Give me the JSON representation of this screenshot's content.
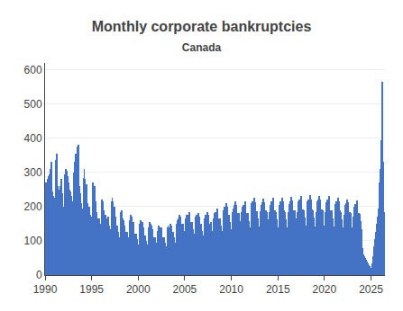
{
  "chart_data": {
    "type": "bar",
    "title": "Monthly corporate bankruptcies",
    "subtitle": "Canada",
    "color": "#4472C4",
    "grid": true,
    "xlim": [
      1990,
      2026.5
    ],
    "xticks": [
      1990,
      1995,
      2000,
      2005,
      2010,
      2015,
      2020,
      2025
    ],
    "ylim": [
      0,
      620
    ],
    "yticks": [
      0,
      100,
      200,
      300,
      400,
      500,
      600
    ],
    "x": [
      1990,
      1990.0833333333333,
      1990.1666666666667,
      1990.25,
      1990.3333333333333,
      1990.4166666666667,
      1990.5,
      1990.5833333333333,
      1990.6666666666667,
      1990.75,
      1990.8333333333333,
      1990.9166666666667,
      1991,
      1991.0833333333333,
      1991.1666666666667,
      1991.25,
      1991.3333333333333,
      1991.4166666666667,
      1991.5,
      1991.5833333333333,
      1991.6666666666667,
      1991.75,
      1991.8333333333333,
      1991.9166666666667,
      1992,
      1992.0833333333333,
      1992.1666666666667,
      1992.25,
      1992.3333333333333,
      1992.4166666666667,
      1992.5,
      1992.5833333333333,
      1992.6666666666667,
      1992.75,
      1992.8333333333333,
      1992.9166666666667,
      1993,
      1993.0833333333333,
      1993.1666666666667,
      1993.25,
      1993.3333333333333,
      1993.4166666666667,
      1993.5,
      1993.5833333333333,
      1993.6666666666667,
      1993.75,
      1993.8333333333333,
      1993.9166666666667,
      1994,
      1994.0833333333333,
      1994.1666666666667,
      1994.25,
      1994.3333333333333,
      1994.4166666666667,
      1994.5,
      1994.5833333333333,
      1994.6666666666667,
      1994.75,
      1994.8333333333333,
      1994.9166666666667,
      1995,
      1995.0833333333333,
      1995.1666666666667,
      1995.25,
      1995.3333333333333,
      1995.4166666666667,
      1995.5,
      1995.5833333333333,
      1995.6666666666667,
      1995.75,
      1995.8333333333333,
      1995.9166666666667,
      1996,
      1996.0833333333333,
      1996.1666666666667,
      1996.25,
      1996.3333333333333,
      1996.4166666666667,
      1996.5,
      1996.5833333333333,
      1996.6666666666667,
      1996.75,
      1996.8333333333333,
      1996.9166666666667,
      1997,
      1997.0833333333333,
      1997.1666666666667,
      1997.25,
      1997.3333333333333,
      1997.4166666666667,
      1997.5,
      1997.5833333333333,
      1997.6666666666667,
      1997.75,
      1997.8333333333333,
      1997.9166666666667,
      1998,
      1998.0833333333333,
      1998.1666666666667,
      1998.25,
      1998.3333333333333,
      1998.4166666666667,
      1998.5,
      1998.5833333333333,
      1998.6666666666667,
      1998.75,
      1998.8333333333333,
      1998.9166666666667,
      1999,
      1999.0833333333333,
      1999.1666666666667,
      1999.25,
      1999.3333333333333,
      1999.4166666666667,
      1999.5,
      1999.5833333333333,
      1999.6666666666667,
      1999.75,
      1999.8333333333333,
      1999.9166666666667,
      2000,
      2000.0833333333333,
      2000.1666666666667,
      2000.25,
      2000.3333333333333,
      2000.4166666666667,
      2000.5,
      2000.5833333333333,
      2000.6666666666667,
      2000.75,
      2000.8333333333333,
      2000.9166666666667,
      2001,
      2001.0833333333333,
      2001.1666666666667,
      2001.25,
      2001.3333333333333,
      2001.4166666666667,
      2001.5,
      2001.5833333333333,
      2001.6666666666667,
      2001.75,
      2001.8333333333333,
      2001.9166666666667,
      2002,
      2002.0833333333333,
      2002.1666666666667,
      2002.25,
      2002.3333333333333,
      2002.4166666666667,
      2002.5,
      2002.5833333333333,
      2002.6666666666667,
      2002.75,
      2002.8333333333333,
      2002.9166666666667,
      2003,
      2003.0833333333333,
      2003.1666666666667,
      2003.25,
      2003.3333333333333,
      2003.4166666666667,
      2003.5,
      2003.5833333333333,
      2003.6666666666667,
      2003.75,
      2003.8333333333333,
      2003.9166666666667,
      2004,
      2004.0833333333333,
      2004.1666666666667,
      2004.25,
      2004.3333333333333,
      2004.4166666666667,
      2004.5,
      2004.5833333333333,
      2004.6666666666667,
      2004.75,
      2004.8333333333333,
      2004.9166666666667,
      2005,
      2005.0833333333333,
      2005.1666666666667,
      2005.25,
      2005.3333333333333,
      2005.4166666666667,
      2005.5,
      2005.5833333333333,
      2005.6666666666667,
      2005.75,
      2005.8333333333333,
      2005.9166666666667,
      2006,
      2006.0833333333333,
      2006.1666666666667,
      2006.25,
      2006.3333333333333,
      2006.4166666666667,
      2006.5,
      2006.5833333333333,
      2006.6666666666667,
      2006.75,
      2006.8333333333333,
      2006.9166666666667,
      2007,
      2007.0833333333333,
      2007.1666666666667,
      2007.25,
      2007.3333333333333,
      2007.4166666666667,
      2007.5,
      2007.5833333333333,
      2007.6666666666667,
      2007.75,
      2007.8333333333333,
      2007.9166666666667,
      2008,
      2008.0833333333333,
      2008.1666666666667,
      2008.25,
      2008.3333333333333,
      2008.4166666666667,
      2008.5,
      2008.5833333333333,
      2008.6666666666667,
      2008.75,
      2008.8333333333333,
      2008.9166666666667,
      2009,
      2009.0833333333333,
      2009.1666666666667,
      2009.25,
      2009.3333333333333,
      2009.4166666666667,
      2009.5,
      2009.5833333333333,
      2009.6666666666667,
      2009.75,
      2009.8333333333333,
      2009.9166666666667,
      2010,
      2010.0833333333333,
      2010.1666666666667,
      2010.25,
      2010.3333333333333,
      2010.4166666666667,
      2010.5,
      2010.5833333333333,
      2010.6666666666667,
      2010.75,
      2010.8333333333333,
      2010.9166666666667,
      2011,
      2011.0833333333333,
      2011.1666666666667,
      2011.25,
      2011.3333333333333,
      2011.4166666666667,
      2011.5,
      2011.5833333333333,
      2011.6666666666667,
      2011.75,
      2011.8333333333333,
      2011.9166666666667,
      2012,
      2012.0833333333333,
      2012.1666666666667,
      2012.25,
      2012.3333333333333,
      2012.4166666666667,
      2012.5,
      2012.5833333333333,
      2012.6666666666667,
      2012.75,
      2012.8333333333333,
      2012.9166666666667,
      2013,
      2013.0833333333333,
      2013.1666666666667,
      2013.25,
      2013.3333333333333,
      2013.4166666666667,
      2013.5,
      2013.5833333333333,
      2013.6666666666667,
      2013.75,
      2013.8333333333333,
      2013.9166666666667,
      2014,
      2014.0833333333333,
      2014.1666666666667,
      2014.25,
      2014.3333333333333,
      2014.4166666666667,
      2014.5,
      2014.5833333333333,
      2014.6666666666667,
      2014.75,
      2014.8333333333333,
      2014.9166666666667,
      2015,
      2015.0833333333333,
      2015.1666666666667,
      2015.25,
      2015.3333333333333,
      2015.4166666666667,
      2015.5,
      2015.5833333333333,
      2015.6666666666667,
      2015.75,
      2015.8333333333333,
      2015.9166666666667,
      2016,
      2016.0833333333333,
      2016.1666666666667,
      2016.25,
      2016.3333333333333,
      2016.4166666666667,
      2016.5,
      2016.5833333333333,
      2016.6666666666667,
      2016.75,
      2016.8333333333333,
      2016.9166666666667,
      2017,
      2017.0833333333333,
      2017.1666666666667,
      2017.25,
      2017.3333333333333,
      2017.4166666666667,
      2017.5,
      2017.5833333333333,
      2017.6666666666667,
      2017.75,
      2017.8333333333333,
      2017.9166666666667,
      2018,
      2018.0833333333333,
      2018.1666666666667,
      2018.25,
      2018.3333333333333,
      2018.4166666666667,
      2018.5,
      2018.5833333333333,
      2018.6666666666667,
      2018.75,
      2018.8333333333333,
      2018.9166666666667,
      2019,
      2019.0833333333333,
      2019.1666666666667,
      2019.25,
      2019.3333333333333,
      2019.4166666666667,
      2019.5,
      2019.5833333333333,
      2019.6666666666667,
      2019.75,
      2019.8333333333333,
      2019.9166666666667,
      2020,
      2020.0833333333333,
      2020.1666666666667,
      2020.25,
      2020.3333333333333,
      2020.4166666666667,
      2020.5,
      2020.5833333333333,
      2020.6666666666667,
      2020.75,
      2020.8333333333333,
      2020.9166666666667,
      2021,
      2021.0833333333333,
      2021.1666666666667,
      2021.25,
      2021.3333333333333,
      2021.4166666666667,
      2021.5,
      2021.5833333333333,
      2021.6666666666667,
      2021.75,
      2021.8333333333333,
      2021.9166666666667,
      2022,
      2022.0833333333333,
      2022.1666666666667,
      2022.25,
      2022.3333333333333,
      2022.4166666666667,
      2022.5,
      2022.5833333333333,
      2022.6666666666667,
      2022.75,
      2022.8333333333333,
      2022.9166666666667,
      2023,
      2023.0833333333333,
      2023.1666666666667,
      2023.25,
      2023.3333333333333,
      2023.4166666666667,
      2023.5,
      2023.5833333333333,
      2023.6666666666667,
      2023.75,
      2023.8333333333333,
      2023.9166666666667,
      2024,
      2024.0833333333333,
      2024.1666666666667,
      2024.25,
      2024.3333333333333,
      2024.4166666666667,
      2024.5,
      2024.5833333333333,
      2024.6666666666667,
      2024.75,
      2024.8333333333333,
      2024.9166666666667,
      2025,
      2025.0833333333333,
      2025.1666666666667,
      2025.25,
      2025.3333333333333,
      2025.4166666666667,
      2025.5,
      2025.5833333333333,
      2025.6666666666667,
      2025.75,
      2025.8333333333333,
      2025.9166666666667,
      2026,
      2026.0833333333333,
      2026.1666666666667,
      2026.25,
      2026.3333333333333,
      2026.4166666666667
    ],
    "values": [
      180,
      270,
      265,
      280,
      290,
      295,
      310,
      245,
      330,
      245,
      230,
      220,
      225,
      335,
      310,
      355,
      260,
      250,
      245,
      260,
      280,
      265,
      240,
      200,
      195,
      295,
      310,
      305,
      280,
      290,
      270,
      250,
      245,
      230,
      215,
      185,
      190,
      300,
      330,
      355,
      295,
      375,
      380,
      280,
      260,
      240,
      210,
      190,
      195,
      285,
      310,
      280,
      225,
      265,
      210,
      190,
      200,
      200,
      175,
      165,
      170,
      270,
      250,
      260,
      210,
      215,
      185,
      165,
      160,
      165,
      150,
      135,
      145,
      220,
      215,
      190,
      165,
      175,
      165,
      155,
      165,
      170,
      145,
      125,
      135,
      215,
      225,
      215,
      190,
      200,
      170,
      145,
      140,
      145,
      125,
      110,
      100,
      185,
      190,
      165,
      145,
      160,
      145,
      125,
      120,
      125,
      110,
      95,
      90,
      160,
      175,
      170,
      150,
      155,
      140,
      120,
      120,
      120,
      105,
      90,
      85,
      150,
      160,
      160,
      145,
      155,
      140,
      115,
      115,
      115,
      100,
      90,
      80,
      140,
      155,
      150,
      135,
      145,
      135,
      110,
      110,
      110,
      95,
      85,
      80,
      130,
      145,
      140,
      125,
      140,
      130,
      110,
      110,
      110,
      95,
      85,
      80,
      140,
      145,
      140,
      130,
      150,
      145,
      125,
      120,
      125,
      110,
      95,
      90,
      150,
      160,
      165,
      155,
      175,
      170,
      145,
      150,
      150,
      130,
      115,
      110,
      165,
      175,
      175,
      165,
      185,
      175,
      150,
      155,
      155,
      135,
      120,
      110,
      165,
      170,
      175,
      165,
      180,
      170,
      145,
      150,
      150,
      130,
      115,
      110,
      165,
      175,
      175,
      165,
      185,
      175,
      150,
      150,
      155,
      130,
      115,
      110,
      165,
      180,
      185,
      175,
      195,
      185,
      160,
      165,
      165,
      145,
      130,
      120,
      175,
      190,
      200,
      190,
      210,
      200,
      170,
      175,
      175,
      155,
      135,
      130,
      185,
      195,
      205,
      195,
      215,
      205,
      175,
      180,
      180,
      158,
      140,
      130,
      185,
      200,
      205,
      195,
      215,
      205,
      175,
      180,
      180,
      158,
      138,
      128,
      183,
      210,
      215,
      205,
      225,
      213,
      183,
      187,
      187,
      165,
      143,
      132,
      187,
      205,
      213,
      205,
      223,
      213,
      183,
      188,
      185,
      162,
      142,
      130,
      185,
      205,
      215,
      205,
      225,
      215,
      185,
      190,
      185,
      162,
      140,
      128,
      183,
      205,
      215,
      205,
      225,
      215,
      188,
      188,
      185,
      162,
      140,
      128,
      183,
      208,
      215,
      208,
      228,
      218,
      188,
      190,
      188,
      165,
      143,
      130,
      185,
      215,
      222,
      215,
      232,
      220,
      190,
      193,
      190,
      167,
      145,
      130,
      188,
      215,
      222,
      215,
      235,
      222,
      192,
      193,
      188,
      167,
      143,
      130,
      185,
      215,
      222,
      215,
      232,
      220,
      192,
      193,
      190,
      167,
      145,
      128,
      183,
      213,
      220,
      213,
      230,
      218,
      190,
      190,
      188,
      165,
      143,
      125,
      180,
      208,
      215,
      208,
      225,
      215,
      188,
      188,
      185,
      162,
      140,
      120,
      175,
      205,
      210,
      205,
      222,
      212,
      183,
      185,
      182,
      160,
      138,
      118,
      172,
      200,
      207,
      200,
      218,
      208,
      180,
      182,
      178,
      157,
      135,
      80,
      75,
      60,
      55,
      50,
      45,
      40,
      35,
      32,
      28,
      25,
      22,
      20,
      35,
      55,
      70,
      85,
      105,
      125,
      150,
      170,
      195,
      225,
      270,
      310,
      395,
      565,
      330,
      180,
      185
    ]
  }
}
